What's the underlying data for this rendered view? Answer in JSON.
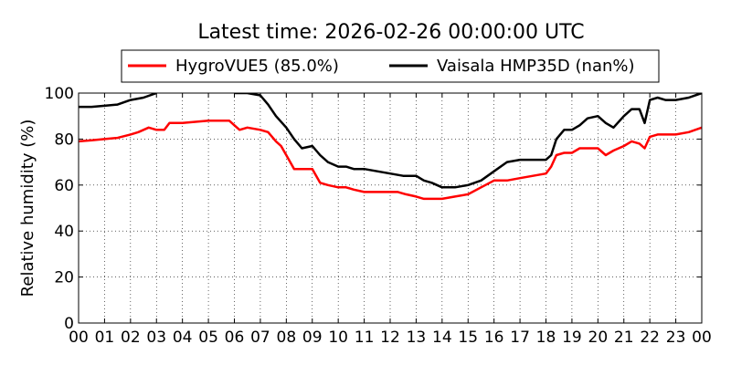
{
  "chart_data": {
    "type": "line",
    "title": "Latest time: 2026-02-26 00:00:00 UTC",
    "xlabel": "",
    "ylabel": "Relative humidity (%)",
    "xlim": [
      0,
      24
    ],
    "ylim": [
      0,
      100
    ],
    "grid": true,
    "legend_position": "top",
    "x_ticks": [
      0,
      1,
      2,
      3,
      4,
      5,
      6,
      7,
      8,
      9,
      10,
      11,
      12,
      13,
      14,
      15,
      16,
      17,
      18,
      19,
      20,
      21,
      22,
      23,
      24
    ],
    "x_tick_labels": [
      "00",
      "01",
      "02",
      "03",
      "04",
      "05",
      "06",
      "07",
      "08",
      "09",
      "10",
      "11",
      "12",
      "13",
      "14",
      "15",
      "16",
      "17",
      "18",
      "19",
      "20",
      "21",
      "22",
      "23",
      "00"
    ],
    "y_ticks": [
      0,
      20,
      40,
      60,
      80,
      100
    ],
    "y_tick_labels": [
      "0",
      "20",
      "40",
      "60",
      "80",
      "100"
    ],
    "series": [
      {
        "name": "HygroVUE5 (85.0%)",
        "color": "#ff0000",
        "x": [
          0,
          0.5,
          1,
          1.5,
          2,
          2.3,
          2.7,
          3,
          3.3,
          3.5,
          4,
          4.5,
          5,
          5.3,
          5.5,
          5.8,
          6,
          6.2,
          6.5,
          7,
          7.3,
          7.6,
          7.8,
          8,
          8.3,
          8.6,
          9,
          9.3,
          9.6,
          10,
          10.3,
          10.6,
          11,
          11.5,
          12,
          12.3,
          12.6,
          13,
          13.3,
          13.6,
          14,
          14.5,
          15,
          15.5,
          16,
          16.5,
          17,
          17.5,
          18,
          18.2,
          18.4,
          18.7,
          19,
          19.3,
          19.6,
          20,
          20.3,
          20.6,
          21,
          21.3,
          21.6,
          21.8,
          22,
          22.3,
          22.6,
          23,
          23.5,
          24
        ],
        "y": [
          79,
          79.5,
          80,
          80.5,
          82,
          83,
          85,
          84,
          84,
          87,
          87,
          87.5,
          88,
          88,
          88,
          88,
          86,
          84,
          85,
          84,
          83,
          79,
          77,
          73,
          67,
          67,
          67,
          61,
          60,
          59,
          59,
          58,
          57,
          57,
          57,
          57,
          56,
          55,
          54,
          54,
          54,
          55,
          56,
          59,
          62,
          62,
          63,
          64,
          65,
          68,
          73,
          74,
          74,
          76,
          76,
          76,
          73,
          75,
          77,
          79,
          78,
          76,
          81,
          82,
          82,
          82,
          83,
          85
        ]
      },
      {
        "name": "Vaisala HMP35D (nan%)",
        "color": "#000000",
        "x": [
          0,
          0.5,
          1,
          1.5,
          2,
          2.5,
          3,
          3.3,
          3.5,
          6,
          6.5,
          7,
          7.3,
          7.6,
          8,
          8.3,
          8.6,
          9,
          9.3,
          9.6,
          10,
          10.3,
          10.6,
          11,
          11.5,
          12,
          12.5,
          13,
          13.3,
          13.6,
          14,
          14.5,
          15,
          15.5,
          16,
          16.5,
          17,
          17.5,
          18,
          18.2,
          18.4,
          18.7,
          19,
          19.3,
          19.6,
          20,
          20.3,
          20.6,
          21,
          21.3,
          21.6,
          21.8,
          22,
          22.3,
          22.6,
          23,
          23.5,
          24
        ],
        "y": [
          94,
          94,
          94.5,
          95,
          97,
          98,
          100,
          null,
          null,
          100,
          100,
          99,
          95,
          90,
          85,
          80,
          76,
          77,
          73,
          70,
          68,
          68,
          67,
          67,
          66,
          65,
          64,
          64,
          62,
          61,
          59,
          59,
          60,
          62,
          66,
          70,
          71,
          71,
          71,
          73,
          80,
          84,
          84,
          86,
          89,
          90,
          87,
          85,
          90,
          93,
          93,
          87,
          97,
          98,
          97,
          97,
          98,
          100
        ]
      }
    ]
  }
}
